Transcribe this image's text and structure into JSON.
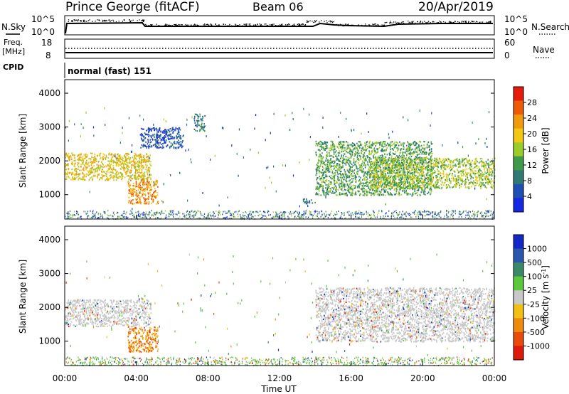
{
  "header": {
    "station": "Prince George (fitACF)",
    "beam": "Beam 06",
    "date": "20/Apr/2019"
  },
  "noise_panel": {
    "left_label": "N.Sky",
    "right_label": "N.Search",
    "tick_top": "10^5",
    "tick_bottom": "10^0"
  },
  "freq_panel": {
    "left_label_1": "Freq.",
    "left_label_2": "[MHz]",
    "left_tick_top": "18",
    "left_tick_bottom": "8",
    "right_label": "Nave",
    "right_tick_top": "60",
    "right_tick_bottom": "0"
  },
  "cpid": {
    "label": "CPID",
    "value": "normal (fast) 151"
  },
  "colors": {
    "power": [
      "#1428e6",
      "#1f4fb4",
      "#2f7a74",
      "#3f9a4a",
      "#9ccc2a",
      "#f2c814",
      "#f09a0c",
      "#ee5a06",
      "#e61c0a"
    ],
    "velocity": [
      "#1428c8",
      "#2a56b0",
      "#3a8a6a",
      "#5cc83c",
      "#c8c8c8",
      "#f2c014",
      "#f08a0c",
      "#ea4a0a",
      "#e01a0a"
    ]
  },
  "chart_data": [
    {
      "type": "heatmap",
      "name": "power",
      "xlabel": "",
      "ylabel": "Slant Range [km]",
      "x_range": [
        "00:00",
        "00:00"
      ],
      "y_ticks": [
        "1000",
        "2000",
        "3000",
        "4000"
      ],
      "colorbar": {
        "label": "Power [dB]",
        "ticks": [
          "4",
          "8",
          "12",
          "16",
          "20",
          "24",
          "28"
        ]
      },
      "regions": [
        {
          "t0": 0.0,
          "t1": 4.8,
          "r0": 1450,
          "r1": 2250,
          "level": 20
        },
        {
          "t0": 3.5,
          "t1": 5.2,
          "r0": 750,
          "r1": 1450,
          "level": 26
        },
        {
          "t0": 4.2,
          "t1": 6.6,
          "r0": 2400,
          "r1": 3000,
          "level": 8
        },
        {
          "t0": 7.2,
          "t1": 7.8,
          "r0": 2900,
          "r1": 3400,
          "level": 12
        },
        {
          "t0": 13.3,
          "t1": 14.0,
          "r0": 750,
          "r1": 900,
          "level": 10
        },
        {
          "t0": 14.0,
          "t1": 20.5,
          "r0": 1000,
          "r1": 2600,
          "level": 14
        },
        {
          "t0": 17.0,
          "t1": 24.0,
          "r0": 1200,
          "r1": 2100,
          "level": 16
        }
      ]
    },
    {
      "type": "heatmap",
      "name": "velocity",
      "xlabel": "Time UT",
      "ylabel": "Slant Range [km]",
      "x_ticks": [
        "00:00",
        "04:00",
        "08:00",
        "12:00",
        "16:00",
        "20:00",
        "00:00"
      ],
      "y_ticks": [
        "1000",
        "2000",
        "3000",
        "4000"
      ],
      "colorbar": {
        "label": "Velocity [m s^-1]",
        "ticks": [
          "1000",
          "500",
          "100",
          "25",
          "-25",
          "-100",
          "-500",
          "-1000"
        ]
      },
      "regions": [
        {
          "t0": 0.0,
          "t1": 4.8,
          "r0": 1450,
          "r1": 2250,
          "level": 0
        },
        {
          "t0": 3.5,
          "t1": 5.2,
          "r0": 700,
          "r1": 1450,
          "level": -300
        },
        {
          "t0": 14.0,
          "t1": 24.0,
          "r0": 1000,
          "r1": 2600,
          "level": 0
        }
      ]
    }
  ]
}
